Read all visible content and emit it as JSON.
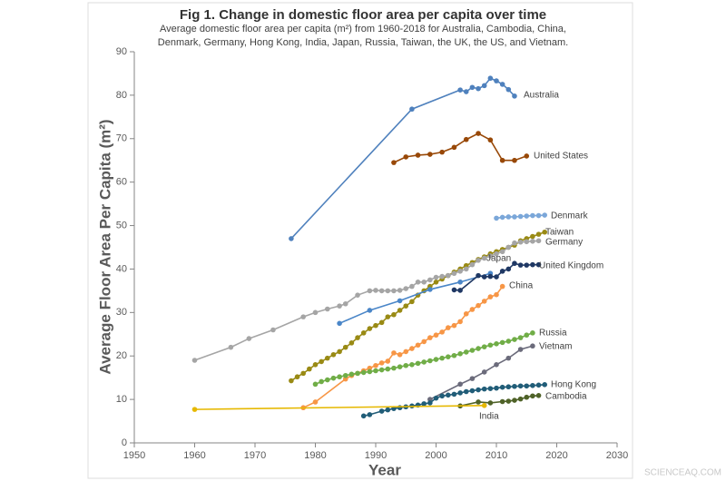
{
  "chart_data": {
    "type": "line",
    "title": "Fig 1. Change in domestic floor area per capita over time",
    "subtitle": "Average domestic floor area per capita (m²) from 1960-2018 for Australia, Cambodia, China, Denmark, Germany, Hong Kong, India, Japan, Russia, Taiwan, the UK, the US, and Vietnam.",
    "x_label": "Year",
    "y_label": "Average Floor Area Per Capita (m²)",
    "watermark": "SCIENCEAQ.COM",
    "xlim": [
      1950,
      2030
    ],
    "xticks": [
      1950,
      1960,
      1970,
      1980,
      1990,
      2000,
      2010,
      2020,
      2030
    ],
    "ylim": [
      0,
      90
    ],
    "yticks": [
      0,
      10,
      20,
      30,
      40,
      50,
      60,
      70,
      80,
      90
    ],
    "grid": false,
    "series": [
      {
        "name": "Australia",
        "color": "#4f81bd",
        "x": [
          1976,
          1996,
          2004,
          2005,
          2006,
          2007,
          2008,
          2009,
          2010,
          2011,
          2012,
          2013
        ],
        "values": [
          47,
          76.8,
          81.2,
          80.8,
          81.8,
          81.5,
          82.2,
          83.9,
          83.3,
          82.5,
          81.3,
          79.8
        ]
      },
      {
        "name": "United States",
        "color": "#984807",
        "x": [
          1993,
          1995,
          1997,
          1999,
          2001,
          2003,
          2005,
          2007,
          2009,
          2011,
          2013,
          2015
        ],
        "values": [
          64.5,
          65.8,
          66.2,
          66.4,
          66.9,
          68,
          69.8,
          71.2,
          69.7,
          65,
          65,
          66
        ]
      },
      {
        "name": "Denmark",
        "color": "#7ba7d9",
        "x": [
          2010,
          2011,
          2012,
          2013,
          2014,
          2015,
          2016,
          2017,
          2018
        ],
        "values": [
          51.7,
          51.9,
          52,
          52,
          52.1,
          52.2,
          52.3,
          52.3,
          52.4
        ]
      },
      {
        "name": "Taiwan",
        "color": "#998a14",
        "x": [
          1976,
          1977,
          1978,
          1979,
          1980,
          1981,
          1982,
          1983,
          1984,
          1985,
          1986,
          1987,
          1988,
          1989,
          1990,
          1991,
          1992,
          1993,
          1994,
          1995,
          1996,
          1997,
          1998,
          1999,
          2000,
          2001,
          2002,
          2003,
          2004,
          2005,
          2006,
          2007,
          2008,
          2009,
          2010,
          2011,
          2012,
          2013,
          2014,
          2015,
          2016,
          2017,
          2018
        ],
        "values": [
          14.3,
          15.2,
          16,
          17,
          18,
          18.7,
          19.5,
          20.3,
          21,
          22,
          23,
          24.2,
          25.3,
          26.3,
          27,
          27.7,
          29,
          29.5,
          30.5,
          31.5,
          32.5,
          34,
          35,
          36,
          37,
          37.7,
          38.5,
          39.3,
          40,
          40.8,
          41.5,
          42.2,
          42.8,
          43.5,
          44,
          44.5,
          45,
          45.5,
          46.5,
          47,
          47.5,
          48,
          48.5
        ]
      },
      {
        "name": "Germany",
        "color": "#a5a5a5",
        "x": [
          1960,
          1966,
          1969,
          1973,
          1978,
          1980,
          1982,
          1984,
          1985,
          1987,
          1989,
          1990,
          1991,
          1992,
          1993,
          1994,
          1995,
          1996,
          1997,
          1998,
          1999,
          2000,
          2001,
          2002,
          2003,
          2004,
          2005,
          2006,
          2007,
          2008,
          2009,
          2010,
          2011,
          2012,
          2013,
          2014,
          2015,
          2016,
          2017
        ],
        "values": [
          19,
          22,
          24,
          26,
          29,
          30,
          30.8,
          31.5,
          32,
          34,
          35,
          35.1,
          35,
          35,
          35,
          35.1,
          35.5,
          36,
          37,
          37,
          37.5,
          38.1,
          38.3,
          38.5,
          39,
          39.5,
          40,
          41,
          42,
          42.5,
          43,
          43.5,
          44,
          45,
          46,
          46.2,
          46.3,
          46.4,
          46.5
        ]
      },
      {
        "name": "Japan",
        "color": "#4a86c8",
        "x": [
          1984,
          1989,
          1994,
          1999,
          2004,
          2009
        ],
        "values": [
          27.5,
          30.5,
          32.7,
          35.3,
          37,
          39
        ]
      },
      {
        "name": "United Kingdom",
        "color": "#1f3864",
        "x": [
          2003,
          2004,
          2007,
          2008,
          2009,
          2010,
          2011,
          2012,
          2013,
          2014,
          2015,
          2016,
          2017
        ],
        "values": [
          35.2,
          35.1,
          38.5,
          38.2,
          38.3,
          38.2,
          39.5,
          40,
          41.3,
          40.9,
          40.9,
          41,
          41
        ]
      },
      {
        "name": "China",
        "color": "#f79646",
        "x": [
          1978,
          1980,
          1985,
          1986,
          1987,
          1988,
          1989,
          1990,
          1991,
          1992,
          1993,
          1994,
          1995,
          1996,
          1997,
          1998,
          1999,
          2000,
          2001,
          2002,
          2003,
          2004,
          2005,
          2006,
          2007,
          2008,
          2009,
          2010,
          2011
        ],
        "values": [
          8.1,
          9.4,
          14.7,
          15.5,
          16,
          16.6,
          17.2,
          17.8,
          18.4,
          18.8,
          20.7,
          20.3,
          21,
          21.7,
          22.5,
          23.3,
          24.2,
          24.8,
          25.5,
          26.5,
          27,
          27.9,
          29.7,
          30.7,
          31.6,
          32.6,
          33.6,
          34.1,
          36
        ]
      },
      {
        "name": "Russia",
        "color": "#70ad47",
        "x": [
          1980,
          1981,
          1982,
          1983,
          1984,
          1985,
          1986,
          1987,
          1988,
          1989,
          1990,
          1991,
          1992,
          1993,
          1994,
          1995,
          1996,
          1997,
          1998,
          1999,
          2000,
          2001,
          2002,
          2003,
          2004,
          2005,
          2006,
          2007,
          2008,
          2009,
          2010,
          2011,
          2012,
          2013,
          2014,
          2015,
          2016
        ],
        "values": [
          13.5,
          14.1,
          14.5,
          14.9,
          15.2,
          15.5,
          15.8,
          16,
          16.2,
          16.4,
          16.6,
          16.8,
          17,
          17.2,
          17.5,
          17.8,
          18,
          18.3,
          18.6,
          18.9,
          19.2,
          19.5,
          19.8,
          20.1,
          20.5,
          20.9,
          21.3,
          21.7,
          22.1,
          22.5,
          22.8,
          23.1,
          23.4,
          23.8,
          24.2,
          24.8,
          25.3
        ]
      },
      {
        "name": "Vietnam",
        "color": "#6b6b7b",
        "x": [
          1999,
          2004,
          2006,
          2008,
          2010,
          2012,
          2014,
          2016
        ],
        "values": [
          10,
          13.5,
          14.8,
          16.3,
          18,
          19.5,
          21.5,
          22.3
        ]
      },
      {
        "name": "Hong Kong",
        "color": "#215d78",
        "x": [
          1988,
          1989,
          1991,
          1992,
          1993,
          1994,
          1995,
          1996,
          1997,
          1998,
          1999,
          2000,
          2001,
          2002,
          2003,
          2004,
          2005,
          2006,
          2007,
          2008,
          2009,
          2010,
          2011,
          2012,
          2013,
          2014,
          2015,
          2016,
          2017,
          2018
        ],
        "values": [
          6.2,
          6.5,
          7.3,
          7.6,
          7.9,
          8.1,
          8.3,
          8.5,
          8.7,
          9,
          9.2,
          10.3,
          10.8,
          11,
          11.2,
          11.5,
          11.8,
          12,
          12.2,
          12.4,
          12.5,
          12.6,
          12.8,
          12.9,
          13,
          13.1,
          13.1,
          13.2,
          13.3,
          13.4
        ]
      },
      {
        "name": "Cambodia",
        "color": "#4f6228",
        "x": [
          2004,
          2007,
          2009,
          2011,
          2012,
          2013,
          2014,
          2015,
          2016,
          2017
        ],
        "values": [
          8.5,
          9.4,
          9.2,
          9.5,
          9.6,
          9.8,
          10.1,
          10.5,
          10.8,
          10.9
        ]
      },
      {
        "name": "India",
        "color": "#e6b800",
        "x": [
          1960,
          2008
        ],
        "values": [
          7.7,
          8.6
        ]
      }
    ]
  }
}
